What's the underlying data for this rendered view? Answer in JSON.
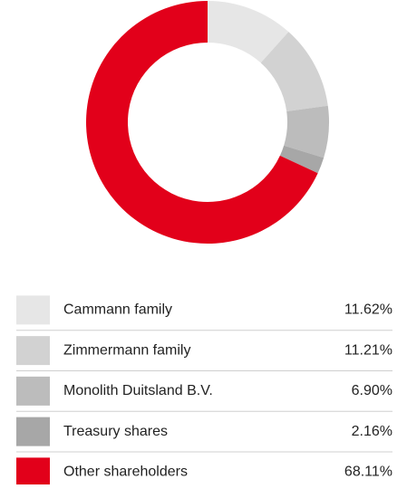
{
  "chart_data": {
    "type": "donut",
    "categories": [
      "Cammann family",
      "Zimmermann family",
      "Monolith Duitsland B.V.",
      "Treasury shares",
      "Other shareholders"
    ],
    "values": [
      11.62,
      11.21,
      6.9,
      2.16,
      68.11
    ],
    "value_labels": [
      "11.62%",
      "11.21%",
      "6.90%",
      "2.16%",
      "68.11%"
    ],
    "colors": [
      "#e6e6e6",
      "#d2d2d2",
      "#bcbcbc",
      "#a7a7a7",
      "#e2001a"
    ]
  }
}
